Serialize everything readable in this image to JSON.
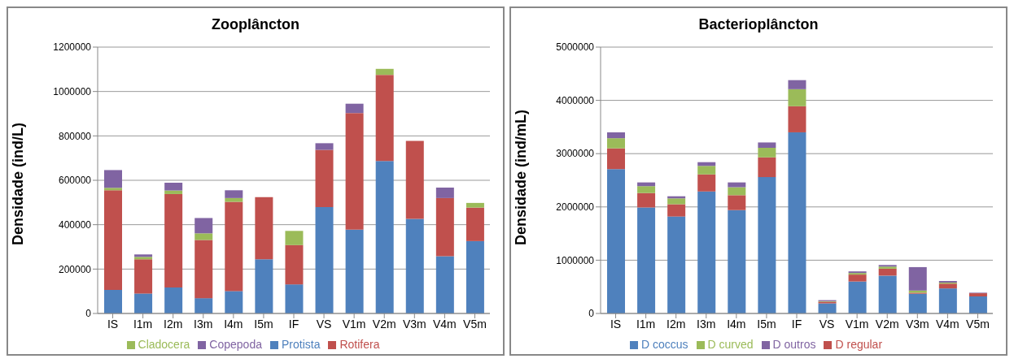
{
  "chart_data": [
    {
      "type": "bar",
      "title": "Zooplâncton",
      "ylabel": "Densidade (ind/L)",
      "categories": [
        "IS",
        "I1m",
        "I2m",
        "I3m",
        "I4m",
        "I5m",
        "IF",
        "VS",
        "V1m",
        "V2m",
        "V3m",
        "V4m",
        "V5m"
      ],
      "stacked": true,
      "ylim": [
        0,
        1200000
      ],
      "yticks": [
        0,
        200000,
        400000,
        600000,
        800000,
        1000000,
        1200000
      ],
      "grid": "y",
      "legend": "bottom",
      "series": [
        {
          "name": "Protista",
          "color": "#4f81bd",
          "values": [
            106000,
            90000,
            117000,
            69000,
            101000,
            244000,
            131000,
            479000,
            378000,
            687000,
            426000,
            258000,
            326000
          ]
        },
        {
          "name": "Rotifera",
          "color": "#c0504d",
          "values": [
            449000,
            154000,
            421000,
            262000,
            402000,
            280000,
            177000,
            258000,
            525000,
            388000,
            351000,
            262000,
            151000
          ]
        },
        {
          "name": "Cladocera",
          "color": "#9bbb59",
          "values": [
            11000,
            11000,
            16000,
            30000,
            17000,
            0,
            64000,
            0,
            0,
            27000,
            0,
            0,
            21000
          ]
        },
        {
          "name": "Copepoda",
          "color": "#8064a2",
          "values": [
            80000,
            11000,
            35000,
            69000,
            35000,
            0,
            0,
            30000,
            42000,
            0,
            0,
            47000,
            0
          ]
        }
      ]
    },
    {
      "type": "bar",
      "title": "Bacterioplâncton",
      "ylabel": "Densidade (ind/mL)",
      "categories": [
        "IS",
        "I1m",
        "I2m",
        "I3m",
        "I4m",
        "I5m",
        "IF",
        "VS",
        "V1m",
        "V2m",
        "V3m",
        "V4m",
        "V5m"
      ],
      "stacked": true,
      "ylim": [
        0,
        5000000
      ],
      "yticks": [
        0,
        1000000,
        2000000,
        3000000,
        4000000,
        5000000
      ],
      "grid": "y",
      "legend": "bottom",
      "series": [
        {
          "name": "D coccus",
          "color": "#4f81bd",
          "values": [
            2710000,
            1990000,
            1820000,
            2290000,
            1940000,
            2560000,
            3400000,
            190000,
            600000,
            710000,
            370000,
            470000,
            320000
          ]
        },
        {
          "name": "D regular",
          "color": "#c0504d",
          "values": [
            390000,
            270000,
            230000,
            320000,
            280000,
            370000,
            490000,
            30000,
            130000,
            130000,
            20000,
            90000,
            60000
          ]
        },
        {
          "name": "D curved",
          "color": "#9bbb59",
          "values": [
            190000,
            130000,
            110000,
            160000,
            150000,
            180000,
            320000,
            10000,
            30000,
            40000,
            40000,
            20000,
            0
          ]
        },
        {
          "name": "D outros",
          "color": "#8064a2",
          "values": [
            110000,
            70000,
            40000,
            70000,
            90000,
            100000,
            170000,
            20000,
            30000,
            30000,
            440000,
            30000,
            10000
          ]
        }
      ]
    }
  ]
}
